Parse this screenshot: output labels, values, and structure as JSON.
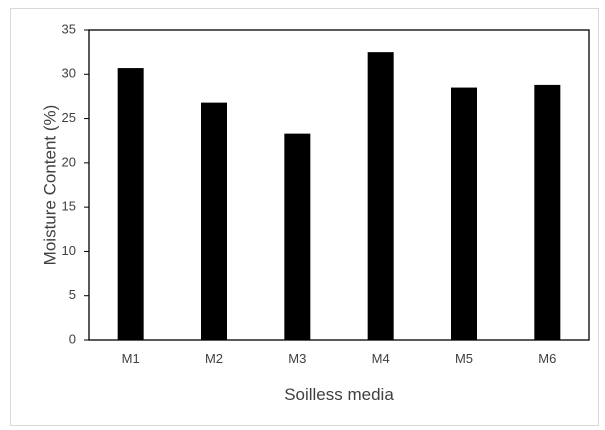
{
  "chart_data": {
    "type": "bar",
    "title": "",
    "xlabel": "Soilless media",
    "ylabel": "Moisture Content (%)",
    "categories": [
      "M1",
      "M2",
      "M3",
      "M4",
      "M5",
      "M6"
    ],
    "values": [
      30.7,
      26.8,
      23.3,
      32.5,
      28.5,
      28.8
    ],
    "ylim": [
      0,
      35
    ],
    "yticks": [
      0,
      5,
      10,
      15,
      20,
      25,
      30,
      35
    ],
    "grid": false,
    "legend": "none",
    "bar_color": "#000000"
  }
}
